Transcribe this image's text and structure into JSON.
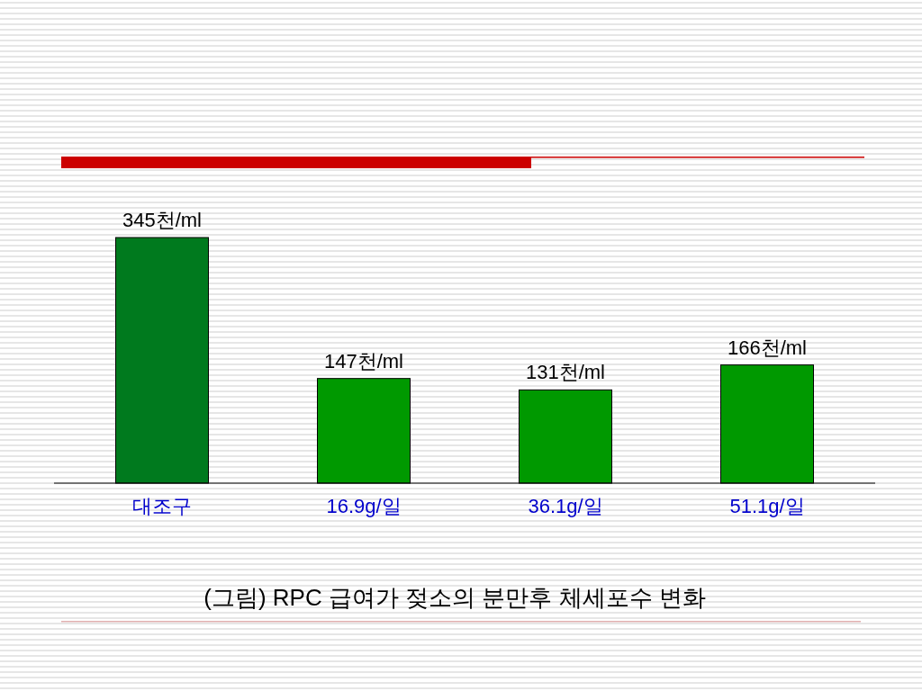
{
  "chart_data": {
    "type": "bar",
    "title": "(그림) RPC 급여가 젖소의 분만후 체세포수 변화",
    "categories": [
      "대조구",
      "16.9g/일",
      "36.1g/일",
      "51.1g/일"
    ],
    "values": [
      345,
      147,
      131,
      166
    ],
    "colors": [
      "#007a1e",
      "#009900",
      "#009900",
      "#009900"
    ],
    "value_labels": [
      "345천/ml",
      "147천/ml",
      "131천/ml",
      "166천/ml"
    ]
  }
}
